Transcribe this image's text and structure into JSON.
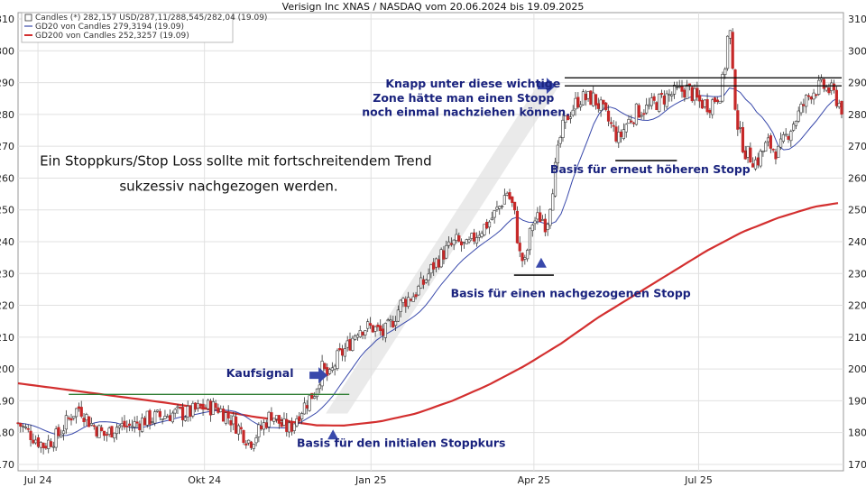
{
  "chart_data": {
    "type": "candlestick",
    "title": "Verisign Inc XNAS / NASDAQ vom 20.06.2024 bis 19.09.2025",
    "ylim": [
      168,
      312
    ],
    "yticks": [
      170,
      180,
      190,
      200,
      210,
      220,
      230,
      240,
      250,
      260,
      270,
      280,
      290,
      300,
      310
    ],
    "xticks": [
      {
        "label": "Jul 24",
        "day": 11
      },
      {
        "label": "Okt 24",
        "day": 103
      },
      {
        "label": "Jan 25",
        "day": 195
      },
      {
        "label": "Apr 25",
        "day": 285
      },
      {
        "label": "Jul 25",
        "day": 376
      }
    ],
    "grid": true,
    "colors": {
      "up": "#ffffff",
      "down": "#c62828",
      "gd20": "#3949ab",
      "gd200": "#d32f2f",
      "support": "#2e7d32",
      "level": "#111111",
      "annotation": "#1a237e",
      "arrow": "#3949ab",
      "band": "#e6e6e6"
    },
    "legend": {
      "placement": "top-left",
      "entries": [
        "Candles (*) 282,157 USD/287,11/288,545/282,04 (19.09)",
        "GD20 von Candles 279,3194 (19.09)",
        "GD200 von Candles 252,3257 (19.09)"
      ]
    },
    "price_path": [
      [
        0,
        183
      ],
      [
        8,
        179
      ],
      [
        14,
        176
      ],
      [
        22,
        179
      ],
      [
        30,
        186
      ],
      [
        34,
        188
      ],
      [
        40,
        183
      ],
      [
        48,
        179
      ],
      [
        54,
        182
      ],
      [
        62,
        182
      ],
      [
        70,
        184
      ],
      [
        78,
        185
      ],
      [
        86,
        186
      ],
      [
        94,
        186
      ],
      [
        102,
        188
      ],
      [
        110,
        188
      ],
      [
        118,
        184
      ],
      [
        124,
        180
      ],
      [
        128,
        177
      ],
      [
        134,
        181
      ],
      [
        140,
        186
      ],
      [
        146,
        182
      ],
      [
        150,
        181
      ],
      [
        155,
        186
      ],
      [
        160,
        190
      ],
      [
        164,
        193
      ],
      [
        168,
        200
      ],
      [
        172,
        197
      ],
      [
        176,
        203
      ],
      [
        182,
        207
      ],
      [
        188,
        213
      ],
      [
        196,
        213
      ],
      [
        202,
        211
      ],
      [
        206,
        214
      ],
      [
        212,
        221
      ],
      [
        218,
        223
      ],
      [
        224,
        227
      ],
      [
        230,
        233
      ],
      [
        236,
        237
      ],
      [
        242,
        240
      ],
      [
        248,
        238
      ],
      [
        254,
        243
      ],
      [
        260,
        246
      ],
      [
        266,
        251
      ],
      [
        270,
        256
      ],
      [
        274,
        250
      ],
      [
        277,
        236
      ],
      [
        280,
        233
      ],
      [
        284,
        246
      ],
      [
        289,
        248
      ],
      [
        292,
        245
      ],
      [
        296,
        260
      ],
      [
        300,
        274
      ],
      [
        304,
        280
      ],
      [
        310,
        285
      ],
      [
        318,
        285
      ],
      [
        322,
        282
      ],
      [
        326,
        278
      ],
      [
        332,
        272
      ],
      [
        336,
        277
      ],
      [
        342,
        281
      ],
      [
        348,
        282
      ],
      [
        356,
        285
      ],
      [
        364,
        287
      ],
      [
        370,
        288
      ],
      [
        376,
        284
      ],
      [
        382,
        283
      ],
      [
        388,
        287
      ],
      [
        390,
        292
      ],
      [
        392,
        304
      ],
      [
        393,
        309
      ],
      [
        395,
        290
      ],
      [
        398,
        275
      ],
      [
        402,
        268
      ],
      [
        408,
        265
      ],
      [
        414,
        271
      ],
      [
        420,
        268
      ],
      [
        426,
        275
      ],
      [
        432,
        281
      ],
      [
        438,
        287
      ],
      [
        444,
        289
      ],
      [
        450,
        287
      ],
      [
        455,
        282
      ]
    ],
    "gd200_path": [
      [
        0,
        195.5
      ],
      [
        40,
        192.5
      ],
      [
        80,
        189.5
      ],
      [
        110,
        187
      ],
      [
        130,
        185
      ],
      [
        150,
        183.5
      ],
      [
        165,
        182.3
      ],
      [
        180,
        182.2
      ],
      [
        200,
        183.5
      ],
      [
        220,
        186
      ],
      [
        240,
        190
      ],
      [
        260,
        195
      ],
      [
        280,
        201
      ],
      [
        300,
        208
      ],
      [
        320,
        216
      ],
      [
        340,
        223
      ],
      [
        360,
        230
      ],
      [
        380,
        237
      ],
      [
        400,
        243
      ],
      [
        420,
        247.5
      ],
      [
        440,
        251
      ],
      [
        455,
        252.3
      ]
    ],
    "gd20_lag": 12,
    "annotations": [
      {
        "text": "Ein Stoppkurs/Stop Loss sollte mit fortschreitendem Trend",
        "style": "black",
        "day": 12,
        "price": 264
      },
      {
        "text": "sukzessiv nachgezogen werden.",
        "style": "black",
        "day": 56,
        "price": 256
      },
      {
        "text": "Kaufsignal",
        "style": "blue",
        "day": 115,
        "price": 197.5
      },
      {
        "text": "Basis für den initialen Stoppkurs",
        "style": "blue",
        "day": 154,
        "price": 175.5
      },
      {
        "text": "Basis für einen nachgezogenen Stopp",
        "style": "blue",
        "day": 239,
        "price": 222.5
      },
      {
        "text": "Knapp unter diese wichtige",
        "style": "blue",
        "day": 203,
        "price": 288.5
      },
      {
        "text": "Zone hätte man einen Stopp",
        "style": "blue",
        "day": 196,
        "price": 284
      },
      {
        "text": "noch einmal nachziehen können.",
        "style": "blue",
        "day": 190,
        "price": 279.5
      },
      {
        "text": "Basis für erneut höheren Stopp",
        "style": "blue",
        "day": 294,
        "price": 261.5
      }
    ],
    "levels": [
      {
        "kind": "support",
        "day0": 28,
        "day1": 183,
        "price": 192
      },
      {
        "kind": "resistance",
        "day0": 302,
        "day1": 455,
        "price": 291.5
      },
      {
        "kind": "resistance",
        "day0": 302,
        "day1": 455,
        "price": 289
      },
      {
        "kind": "base",
        "day0": 274,
        "day1": 296,
        "price": 229.5
      },
      {
        "kind": "base",
        "day0": 330,
        "day1": 364,
        "price": 265.5
      }
    ],
    "markers": [
      {
        "kind": "triangle",
        "day": 174,
        "price": 179
      },
      {
        "kind": "triangle",
        "day": 289,
        "price": 233
      },
      {
        "kind": "arrow",
        "day": 166,
        "price": 198
      },
      {
        "kind": "arrow",
        "day": 292,
        "price": 289
      }
    ],
    "trend_band": [
      [
        170,
        186
      ],
      [
        182,
        186
      ],
      [
        300,
        290
      ],
      [
        288,
        290
      ]
    ]
  }
}
